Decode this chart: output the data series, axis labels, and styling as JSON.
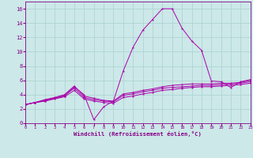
{
  "xlabel": "Windchill (Refroidissement éolien,°C)",
  "x_values": [
    0,
    1,
    2,
    3,
    4,
    5,
    6,
    7,
    8,
    9,
    10,
    11,
    12,
    13,
    14,
    15,
    16,
    17,
    18,
    19,
    20,
    21,
    22,
    23
  ],
  "line1": [
    2.6,
    2.9,
    3.1,
    3.5,
    3.8,
    5.1,
    4.0,
    0.5,
    2.3,
    3.1,
    7.3,
    10.6,
    13.0,
    14.5,
    16.0,
    16.0,
    13.3,
    11.5,
    10.2,
    5.9,
    5.8,
    5.0,
    5.8,
    6.1
  ],
  "line2": [
    2.6,
    2.9,
    3.3,
    3.6,
    4.0,
    5.2,
    3.8,
    3.5,
    3.2,
    3.1,
    4.1,
    4.3,
    4.6,
    4.8,
    5.1,
    5.3,
    5.4,
    5.5,
    5.5,
    5.5,
    5.6,
    5.6,
    5.7,
    6.0
  ],
  "line3": [
    2.6,
    2.9,
    3.2,
    3.5,
    3.9,
    4.9,
    3.6,
    3.3,
    3.1,
    3.0,
    3.9,
    4.1,
    4.4,
    4.6,
    4.9,
    5.0,
    5.1,
    5.2,
    5.3,
    5.3,
    5.4,
    5.5,
    5.6,
    5.8
  ],
  "line4": [
    2.6,
    2.9,
    3.1,
    3.4,
    3.7,
    4.6,
    3.4,
    3.1,
    2.9,
    2.8,
    3.6,
    3.8,
    4.1,
    4.3,
    4.6,
    4.7,
    4.9,
    5.0,
    5.1,
    5.1,
    5.2,
    5.3,
    5.4,
    5.6
  ],
  "line_color": "#aa00aa",
  "bg_color": "#cce8e8",
  "grid_color": "#aad0d0",
  "tick_color": "#880088",
  "ylim": [
    0,
    17
  ],
  "xlim": [
    0,
    23
  ],
  "yticks": [
    0,
    2,
    4,
    6,
    8,
    10,
    12,
    14,
    16
  ],
  "xticks": [
    0,
    1,
    2,
    3,
    4,
    5,
    6,
    7,
    8,
    9,
    10,
    11,
    12,
    13,
    14,
    15,
    16,
    17,
    18,
    19,
    20,
    21,
    22,
    23
  ]
}
